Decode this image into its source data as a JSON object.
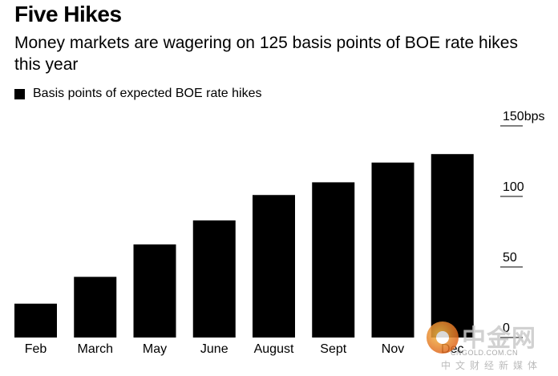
{
  "title": "Five Hikes",
  "subtitle": "Money markets are wagering on 125 basis points of BOE rate hikes this year",
  "legend": {
    "label": "Basis points of expected BOE rate hikes"
  },
  "watermark": {
    "text": "中金网",
    "url": "CNGOLD.COM.CN",
    "sub": "中文财经新媒体"
  },
  "colors": {
    "bar": "#000000",
    "axis": "#000000"
  },
  "chart_data": {
    "type": "bar",
    "categories": [
      "Feb",
      "March",
      "May",
      "June",
      "August",
      "Sept",
      "Nov",
      "Dec"
    ],
    "values": [
      24,
      43,
      66,
      83,
      101,
      110,
      124,
      130
    ],
    "ylim": [
      0,
      150
    ],
    "yticks": [
      0,
      50,
      100,
      150
    ],
    "ytick_labels": [
      "0",
      "50",
      "100",
      "150bps"
    ],
    "title": "Five Hikes",
    "legend": "Basis points of expected BOE rate hikes",
    "grid": false
  }
}
